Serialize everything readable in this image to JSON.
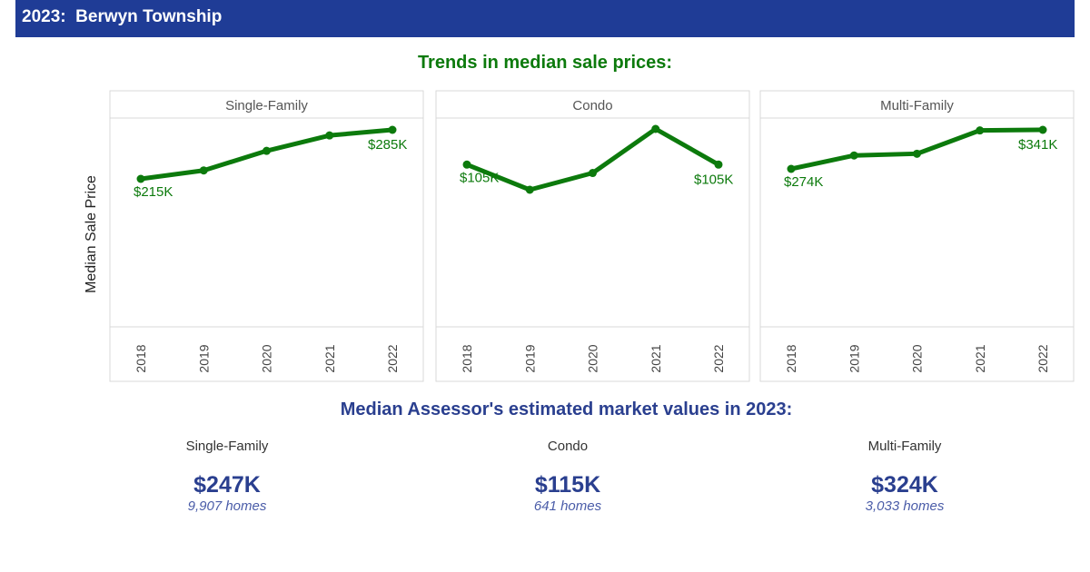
{
  "header": {
    "title": "2023:  Berwyn Township"
  },
  "trends_title": "Trends in median sale prices:",
  "market_values_title": "Median Assessor's estimated market values in 2023:",
  "colors": {
    "header_bg": "#1f3c96",
    "line": "#0c7a0c",
    "title_green": "#0c7a0c",
    "title_blue": "#2a3f8f"
  },
  "chart_data": {
    "type": "line",
    "ylabel": "Median Sale Price",
    "categories": [
      "2018",
      "2019",
      "2020",
      "2021",
      "2022"
    ],
    "ylim": [
      0,
      340
    ],
    "grid": false,
    "panels": [
      {
        "name": "Single-Family",
        "values": [
          215,
          227,
          255,
          277,
          285
        ],
        "labels": [
          {
            "index": 0,
            "text": "$215K"
          },
          {
            "index": 4,
            "text": "$285K"
          }
        ]
      },
      {
        "name": "Condo",
        "values": [
          105,
          93,
          101,
          122,
          105
        ],
        "labels": [
          {
            "index": 0,
            "text": "$105K"
          },
          {
            "index": 4,
            "text": "$105K"
          }
        ]
      },
      {
        "name": "Multi-Family",
        "values": [
          274,
          297,
          300,
          340,
          341
        ],
        "labels": [
          {
            "index": 0,
            "text": "$274K"
          },
          {
            "index": 4,
            "text": "$341K"
          }
        ]
      }
    ]
  },
  "market_values": [
    {
      "type": "Single-Family",
      "value": "$247K",
      "homes": "9,907 homes"
    },
    {
      "type": "Condo",
      "value": "$115K",
      "homes": "641 homes"
    },
    {
      "type": "Multi-Family",
      "value": "$324K",
      "homes": "3,033 homes"
    }
  ]
}
